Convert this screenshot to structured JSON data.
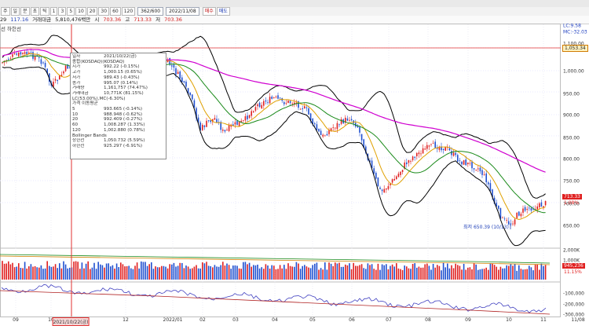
{
  "toolbar": {
    "buttons": [
      "주",
      "일",
      "분",
      "초",
      "틱",
      "1",
      "3",
      "5",
      "10",
      "20",
      "30",
      "60",
      "120"
    ],
    "count": "362/600",
    "date": "2022/11/08",
    "buy": "매수",
    "sell": "매도"
  },
  "infobar": {
    "prefix": "29",
    "change": "117.16",
    "volume_label": "거래대금",
    "volume_value": "5,810,476백만",
    "open_label": "시",
    "open": "703.36",
    "high_label": "고",
    "high": "713.33",
    "low_label": "저",
    "low": "703.36"
  },
  "indicator_title": "선 하한선",
  "indicator_values": {
    "lc": "LC:9.58",
    "mc": "MC:-32.03"
  },
  "tooltip": [
    {
      "k": "일자",
      "v": "2021/10/22(금)"
    },
    {
      "k": "종합(KOSDAQ)(KOSDAQ)",
      "v": ""
    },
    {
      "k": "시가",
      "v": "992.22 (-0.15%)"
    },
    {
      "k": "고가",
      "v": "1,000.15 (0.65%)"
    },
    {
      "k": "저가",
      "v": "989.43 (-0.43%)"
    },
    {
      "k": "종가",
      "v": "995.07 (0.14%)"
    },
    {
      "k": "거래량",
      "v": "1,161,757 (74.47%)"
    },
    {
      "k": "거래대금",
      "v": "10,771K (81.15%)"
    },
    {
      "k": "LC(53.00%),MC(-6.30%)",
      "v": ""
    },
    {
      "k": "가격 이동평균",
      "v": ""
    },
    {
      "k": "5",
      "v": "993.665 (-0.14%)"
    },
    {
      "k": "10",
      "v": "988.948 (-0.62%)"
    },
    {
      "k": "20",
      "v": "992.409 (-0.27%)"
    },
    {
      "k": "60",
      "v": "1,008.287 (1.33%)"
    },
    {
      "k": "120",
      "v": "1,002.880 (0.78%)"
    },
    {
      "k": "Bollinger Bands",
      "v": ""
    },
    {
      "k": "상한선",
      "v": "1,050.732 (5.59%)"
    },
    {
      "k": "하한선",
      "v": "925.297 (-6.91%)"
    }
  ],
  "price_axis": [
    "1,100.00",
    "1,000.00",
    "950.00",
    "900.00",
    "850.00",
    "800.00",
    "750.00",
    "700.00",
    "650.00"
  ],
  "volume_axis": [
    "2,000K",
    "1,000K"
  ],
  "osc_axis": [
    "-100,000",
    "-200,000",
    "-300,000"
  ],
  "price_tags": {
    "hline": "1,053.34",
    "last": "713.33",
    "pct": "1.08%",
    "vol_last": "945,236",
    "vol_pct": "11.15%"
  },
  "annotation_low": "최저 650.39 (10/13)",
  "x_labels": [
    "09",
    "10",
    "2021/10/22(금)",
    "12",
    "2022/01",
    "02",
    "03",
    "04",
    "05",
    "06",
    "07",
    "08",
    "09",
    "10",
    "11",
    "11/08"
  ],
  "colors": {
    "up": "#e02020",
    "down": "#2050d0",
    "ma5": "#e0a000",
    "ma20": "#1a8a1a",
    "ma60": "#d000d0",
    "bb": "#000000",
    "cursor": "#e03030"
  }
}
